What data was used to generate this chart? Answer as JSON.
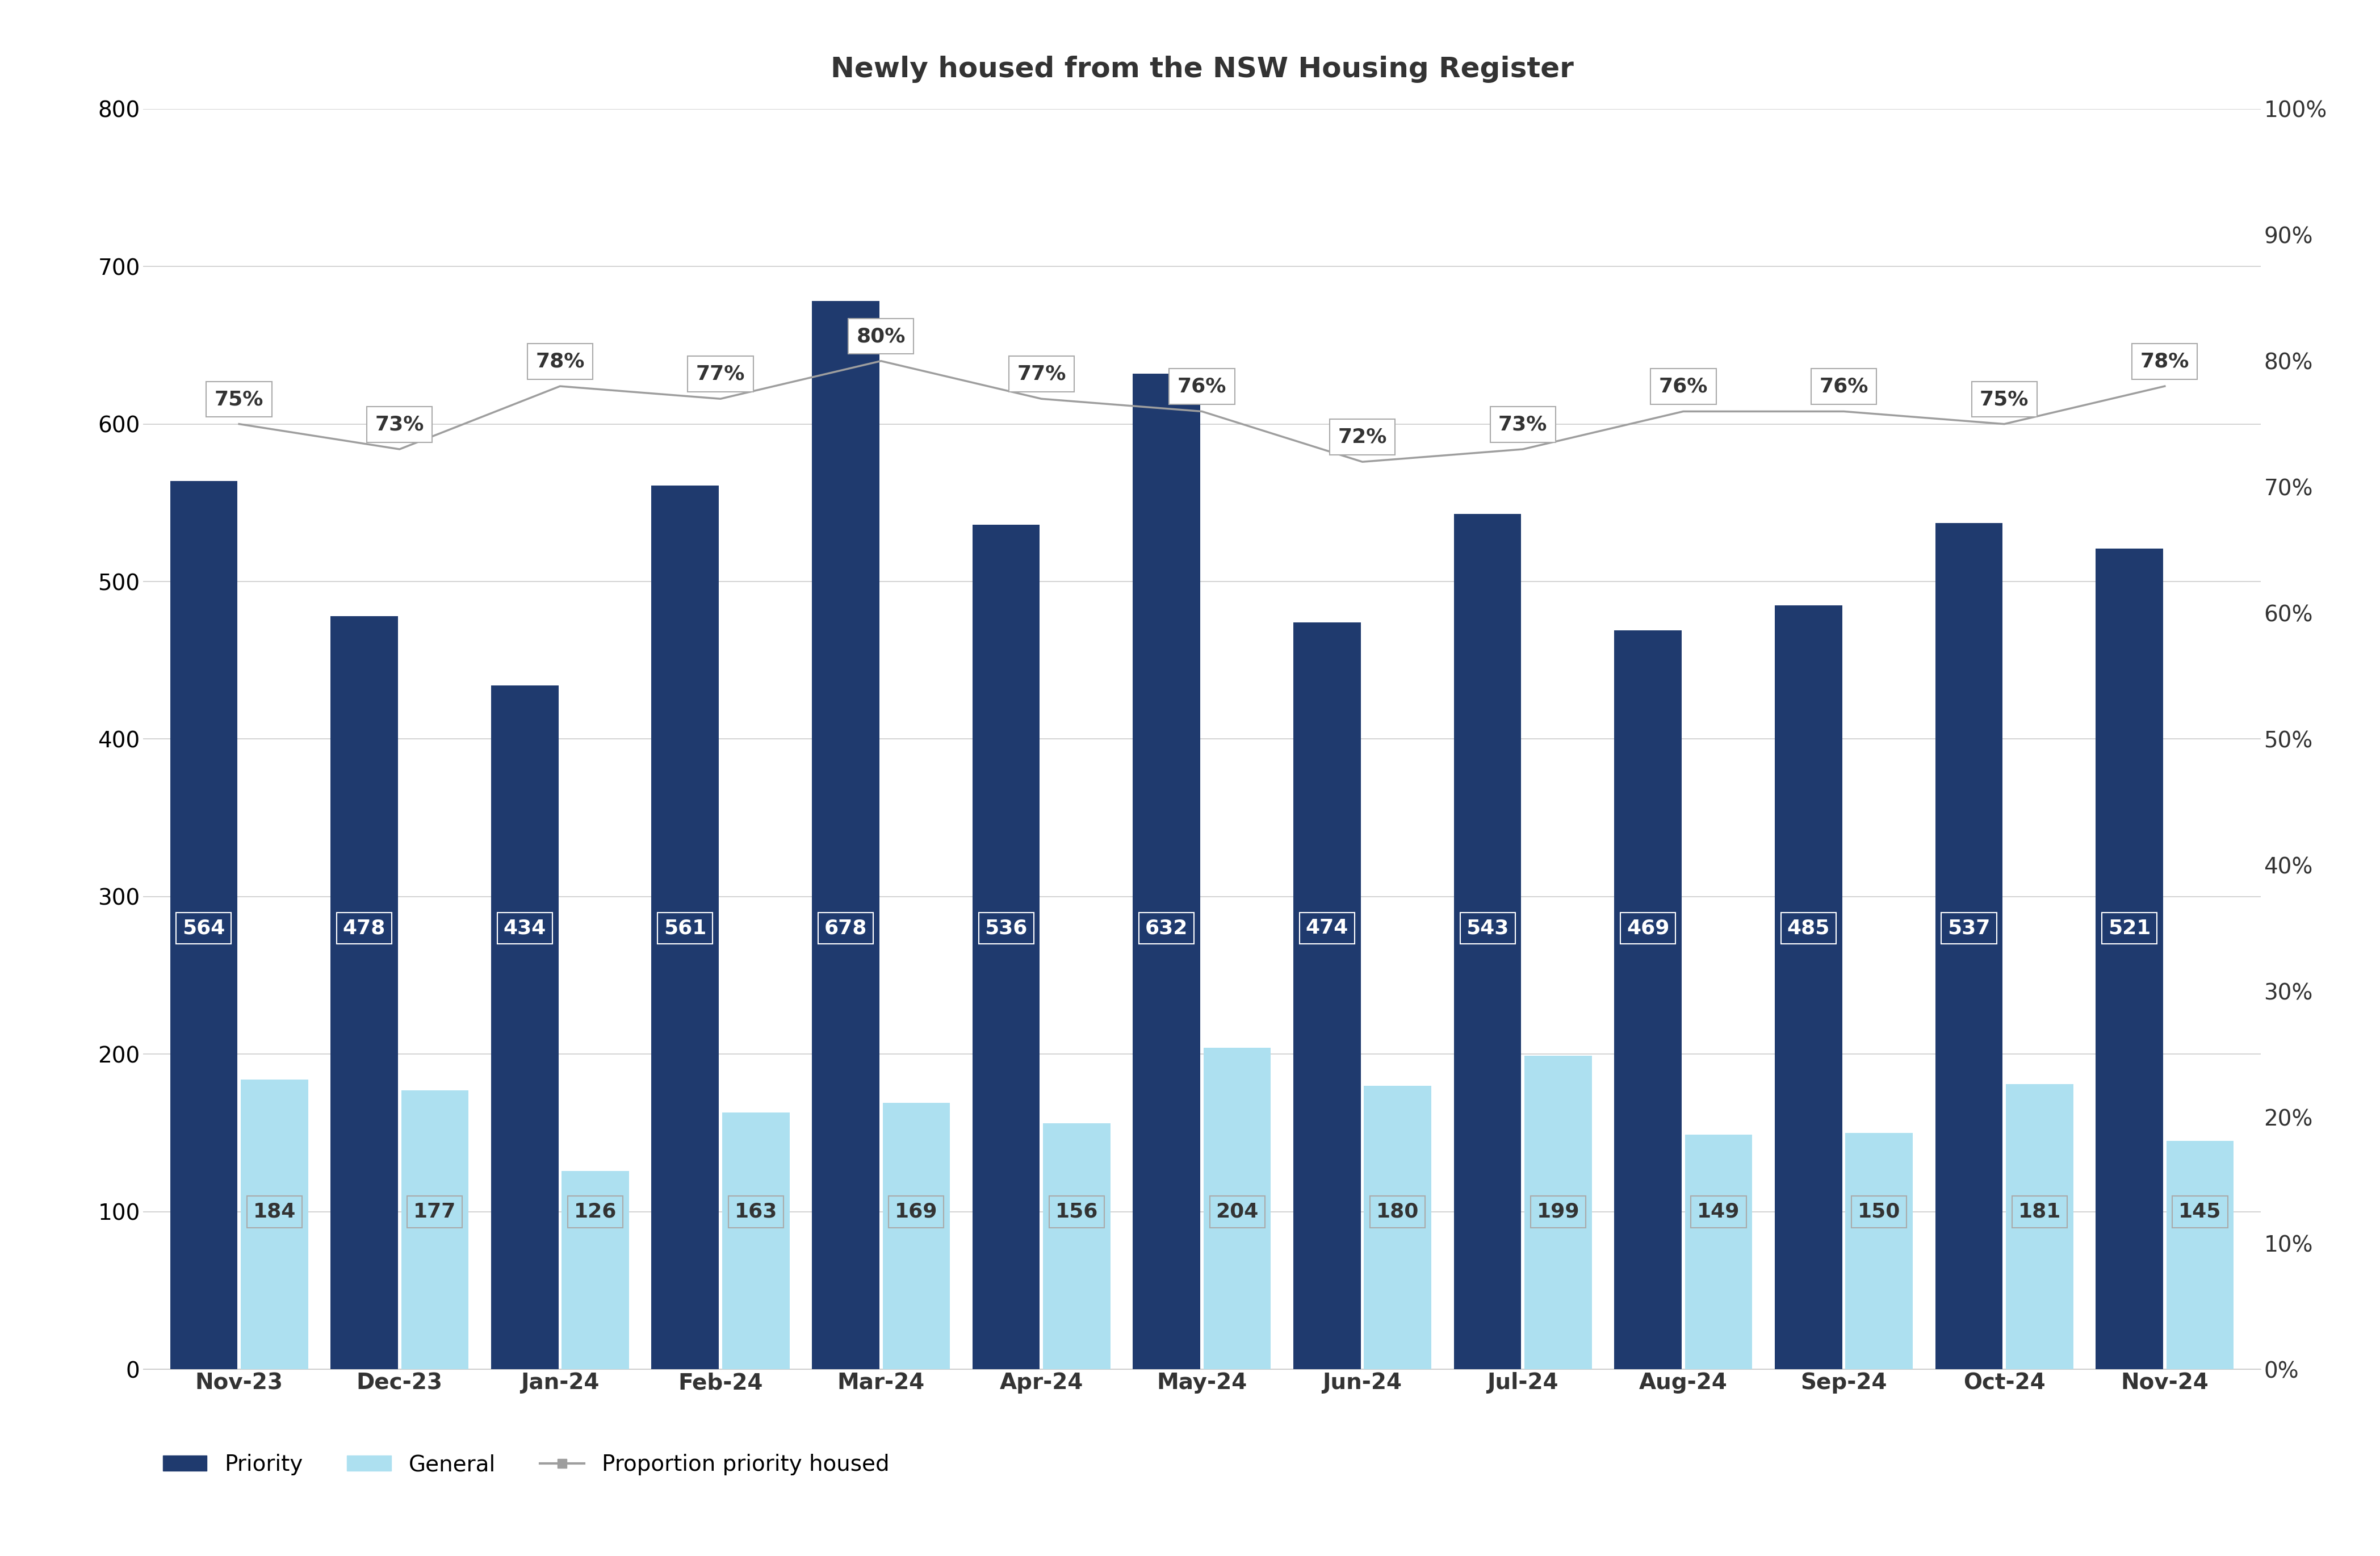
{
  "title": "Newly housed from the NSW Housing Register",
  "categories": [
    "Nov-23",
    "Dec-23",
    "Jan-24",
    "Feb-24",
    "Mar-24",
    "Apr-24",
    "May-24",
    "Jun-24",
    "Jul-24",
    "Aug-24",
    "Sep-24",
    "Oct-24",
    "Nov-24"
  ],
  "priority": [
    564,
    478,
    434,
    561,
    678,
    536,
    632,
    474,
    543,
    469,
    485,
    537,
    521
  ],
  "general": [
    184,
    177,
    126,
    163,
    169,
    156,
    204,
    180,
    199,
    149,
    150,
    181,
    145
  ],
  "proportion": [
    0.75,
    0.73,
    0.78,
    0.77,
    0.8,
    0.77,
    0.76,
    0.72,
    0.73,
    0.76,
    0.76,
    0.75,
    0.78
  ],
  "proportion_labels": [
    "75%",
    "73%",
    "78%",
    "77%",
    "80%",
    "77%",
    "76%",
    "72%",
    "73%",
    "76%",
    "76%",
    "75%",
    "78%"
  ],
  "priority_color": "#1F3A6E",
  "general_color": "#ADE0F0",
  "line_color": "#9E9E9E",
  "bar_label_color_priority": "#FFFFFF",
  "bar_label_color_general": "#333333",
  "background_color": "#FFFFFF",
  "ylim_left": [
    0,
    800
  ],
  "ylim_right": [
    0,
    1.0
  ],
  "yticks_left": [
    0,
    100,
    200,
    300,
    400,
    500,
    600,
    700,
    800
  ],
  "yticks_right": [
    0.0,
    0.1,
    0.2,
    0.3,
    0.4,
    0.5,
    0.6,
    0.7,
    0.8,
    0.9,
    1.0
  ],
  "ytick_right_labels": [
    "0%",
    "10%",
    "20%",
    "30%",
    "40%",
    "50%",
    "60%",
    "70%",
    "80%",
    "90%",
    "100%"
  ],
  "title_fontsize": 36,
  "tick_fontsize": 28,
  "legend_fontsize": 28,
  "bar_label_fontsize": 26,
  "proportion_label_fontsize": 26,
  "bar_width": 0.42,
  "bar_gap": 0.02
}
